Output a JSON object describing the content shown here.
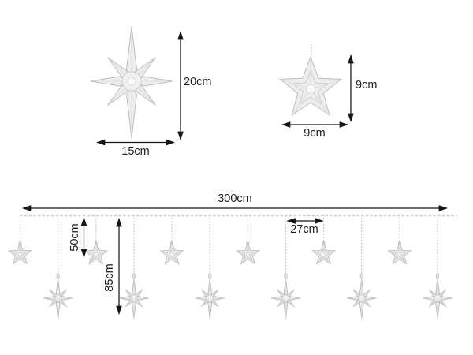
{
  "diagram_title": "star-curtain-dimension-diagram",
  "large_star": {
    "height_label": "20cm",
    "width_label": "15cm"
  },
  "small_star": {
    "height_label": "9cm",
    "width_label": "9cm"
  },
  "curtain": {
    "total_length_label": "300cm",
    "short_drop_label": "50cm",
    "long_drop_label": "85cm",
    "spacing_label": "27cm",
    "drops": [
      "small",
      "large",
      "small",
      "large",
      "small",
      "large",
      "small",
      "large",
      "small",
      "large",
      "small",
      "large"
    ]
  },
  "colors": {
    "dimension_line": "#161616",
    "text": "#1b1b1b",
    "wire": "#c9c9c9",
    "star_fill": "#ededed",
    "star_stroke": "#b9b9b9",
    "background": "#ffffff"
  }
}
